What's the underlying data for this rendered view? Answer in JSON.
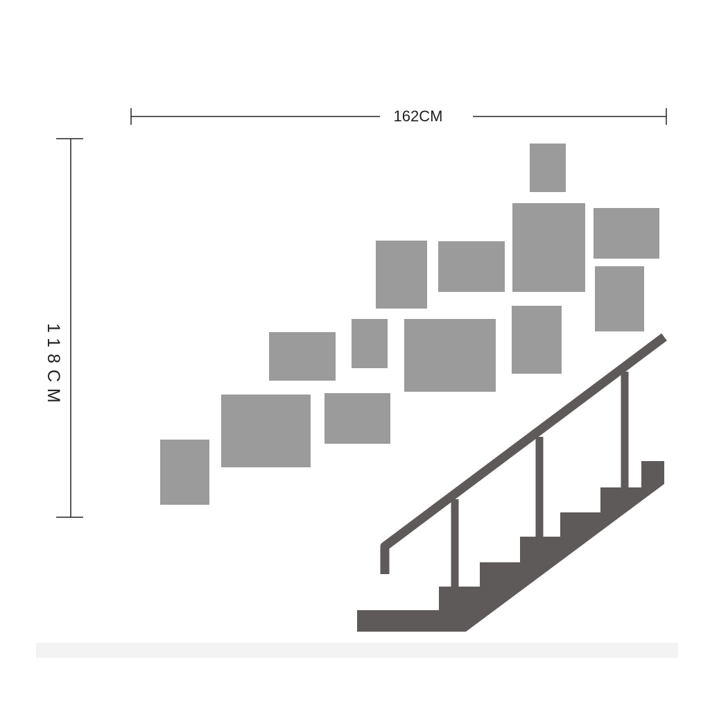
{
  "dimensions": {
    "width_label": "162CM",
    "height_label": "118CM"
  },
  "colors": {
    "background": "#ffffff",
    "frame_fill": "#9b9b9b",
    "staircase_fill": "#5e5a59",
    "dimension_line": "#222222",
    "floor_strip": "#f3f3f3"
  },
  "frames": [
    {
      "name": "frame-1"
    },
    {
      "name": "frame-2"
    },
    {
      "name": "frame-3"
    },
    {
      "name": "frame-4"
    },
    {
      "name": "frame-5"
    },
    {
      "name": "frame-6"
    },
    {
      "name": "frame-7"
    },
    {
      "name": "frame-8"
    },
    {
      "name": "frame-9"
    },
    {
      "name": "frame-10"
    },
    {
      "name": "frame-11"
    },
    {
      "name": "frame-12"
    },
    {
      "name": "frame-13"
    },
    {
      "name": "frame-14"
    }
  ]
}
